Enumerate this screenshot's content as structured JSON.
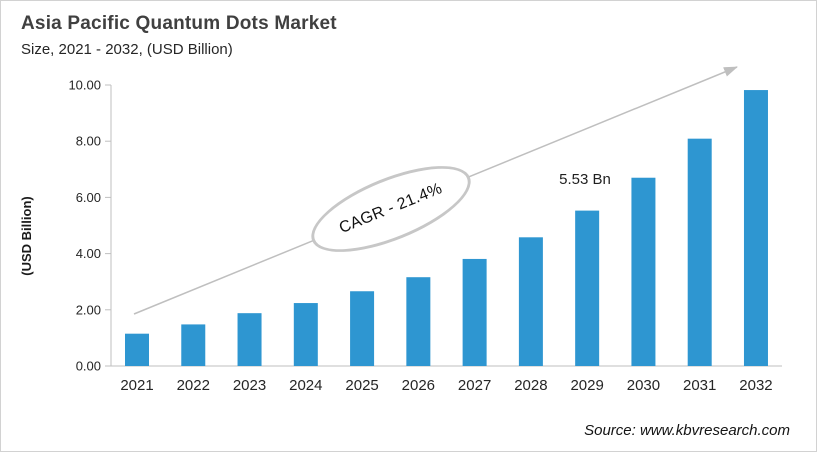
{
  "header": {
    "title": "Asia Pacific Quantum Dots Market",
    "subtitle": "Size, 2021 - 2032, (USD Billion)"
  },
  "chart_data": {
    "type": "bar",
    "title": "Asia Pacific Quantum Dots Market Size, 2021 - 2032, (USD Billion)",
    "categories": [
      "2021",
      "2022",
      "2023",
      "2024",
      "2025",
      "2026",
      "2027",
      "2028",
      "2029",
      "2030",
      "2031",
      "2032"
    ],
    "values": [
      1.15,
      1.48,
      1.88,
      2.24,
      2.66,
      3.16,
      3.81,
      4.58,
      5.53,
      6.7,
      8.09,
      9.82
    ],
    "unit": "USD Billion",
    "xlabel": "",
    "ylabel": "(USD Billion)",
    "ylim": [
      0,
      10
    ],
    "yticks": [
      0,
      2,
      4,
      6,
      8,
      10
    ],
    "ytick_labels": [
      "0.00",
      "2.00",
      "4.00",
      "6.00",
      "8.00",
      "10.00"
    ],
    "grid": false,
    "legend": false,
    "bar_color": "#2E96D1",
    "annotations": {
      "data_label": {
        "text": "5.53 Bn",
        "category": "2029"
      },
      "cagr": {
        "label": "CAGR - 21.4%"
      },
      "trend_arrow": true
    }
  },
  "footer": {
    "source": "Source: www.kbvresearch.com"
  },
  "colors": {
    "bar": "#2E96D1",
    "axis_line": "#BFBFBF",
    "trend_arrow": "#BFBFBF",
    "ellipse_border": "#C7C7C7",
    "title_text": "#404040",
    "body_text": "#262626"
  }
}
